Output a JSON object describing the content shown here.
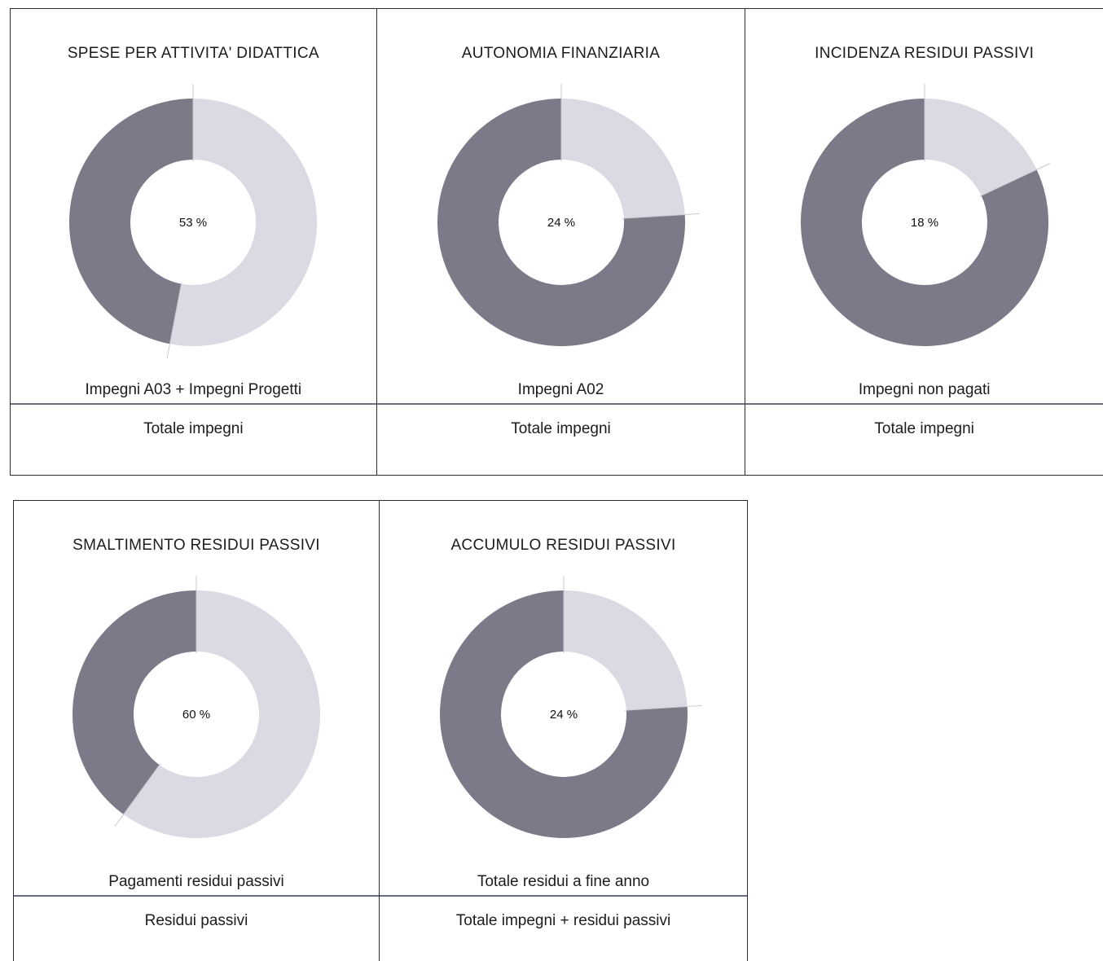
{
  "colors": {
    "dark_slice": "#7a7a88",
    "light_slice": "#d9dae2",
    "divider": "#6a6e80",
    "border": "#2a2a2a"
  },
  "panels": [
    {
      "title": "SPESE PER ATTIVITA' DIDATTICA",
      "center_label": "53 %",
      "numerator": "Impegni A03 + Impegni Progetti",
      "denominator": "Totale impegni"
    },
    {
      "title": "AUTONOMIA FINANZIARIA",
      "center_label": "24 %",
      "numerator": "Impegni A02",
      "denominator": "Totale impegni"
    },
    {
      "title": "INCIDENZA RESIDUI PASSIVI",
      "center_label": "18 %",
      "numerator": "Impegni non pagati",
      "denominator": "Totale impegni"
    },
    {
      "title": "SMALTIMENTO RESIDUI PASSIVI",
      "center_label": "60 %",
      "numerator": "Pagamenti residui passivi",
      "denominator": "Residui passivi"
    },
    {
      "title": "ACCUMULO RESIDUI PASSIVI",
      "center_label": "24 %",
      "numerator": "Totale residui a fine anno",
      "denominator": "Totale impegni + residui passivi"
    }
  ],
  "chart_data": [
    {
      "type": "pie",
      "title": "SPESE PER ATTIVITA' DIDATTICA",
      "categories": [
        "Impegni A03 + Impegni Progetti",
        "Totale impegni"
      ],
      "values": [
        53,
        47
      ],
      "center_label": "53 %"
    },
    {
      "type": "pie",
      "title": "AUTONOMIA FINANZIARIA",
      "categories": [
        "Impegni A02",
        "Totale impegni"
      ],
      "values": [
        24,
        76
      ],
      "center_label": "24 %"
    },
    {
      "type": "pie",
      "title": "INCIDENZA RESIDUI PASSIVI",
      "categories": [
        "Impegni non pagati",
        "Totale impegni"
      ],
      "values": [
        18,
        82
      ],
      "center_label": "18 %"
    },
    {
      "type": "pie",
      "title": "SMALTIMENTO RESIDUI PASSIVI",
      "categories": [
        "Pagamenti residui passivi",
        "Residui passivi"
      ],
      "values": [
        60,
        40
      ],
      "center_label": "60 %"
    },
    {
      "type": "pie",
      "title": "ACCUMULO RESIDUI PASSIVI",
      "categories": [
        "Totale residui a fine anno",
        "Totale impegni + residui passivi"
      ],
      "values": [
        24,
        76
      ],
      "center_label": "24 %"
    }
  ]
}
